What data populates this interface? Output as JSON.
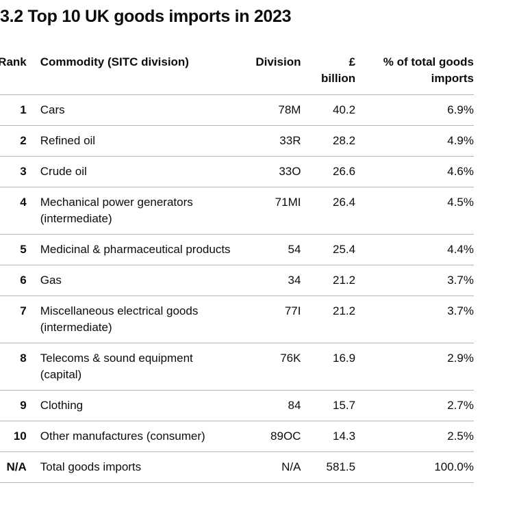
{
  "title": "3.2 Top 10 UK goods imports in 2023",
  "table": {
    "headers": {
      "rank": "Rank",
      "commodity": "Commodity (SITC division)",
      "division": "Division",
      "value_line1": "£",
      "value_line2": "billion",
      "pct_line1": "% of total goods",
      "pct_line2": "imports"
    },
    "rows": [
      {
        "rank": "1",
        "commodity": "Cars",
        "division": "78M",
        "value": "40.2",
        "pct": "6.9%"
      },
      {
        "rank": "2",
        "commodity": "Refined oil",
        "division": "33R",
        "value": "28.2",
        "pct": "4.9%"
      },
      {
        "rank": "3",
        "commodity": "Crude oil",
        "division": "33O",
        "value": "26.6",
        "pct": "4.6%"
      },
      {
        "rank": "4",
        "commodity": "Mechanical power generators (intermediate)",
        "division": "71MI",
        "value": "26.4",
        "pct": "4.5%"
      },
      {
        "rank": "5",
        "commodity": "Medicinal & pharmaceutical products",
        "division": "54",
        "value": "25.4",
        "pct": "4.4%"
      },
      {
        "rank": "6",
        "commodity": "Gas",
        "division": "34",
        "value": "21.2",
        "pct": "3.7%"
      },
      {
        "rank": "7",
        "commodity": "Miscellaneous electrical goods (intermediate)",
        "division": "77I",
        "value": "21.2",
        "pct": "3.7%"
      },
      {
        "rank": "8",
        "commodity": "Telecoms & sound equipment (capital)",
        "division": "76K",
        "value": "16.9",
        "pct": "2.9%"
      },
      {
        "rank": "9",
        "commodity": "Clothing",
        "division": "84",
        "value": "15.7",
        "pct": "2.7%"
      },
      {
        "rank": "10",
        "commodity": "Other manufactures (consumer)",
        "division": "89OC",
        "value": "14.3",
        "pct": "2.5%"
      },
      {
        "rank": "N/A",
        "commodity": "Total goods imports",
        "division": "N/A",
        "value": "581.5",
        "pct": "100.0%"
      }
    ]
  },
  "colors": {
    "text": "#0b0c0c",
    "border": "#b1b4b6",
    "background": "#ffffff"
  }
}
